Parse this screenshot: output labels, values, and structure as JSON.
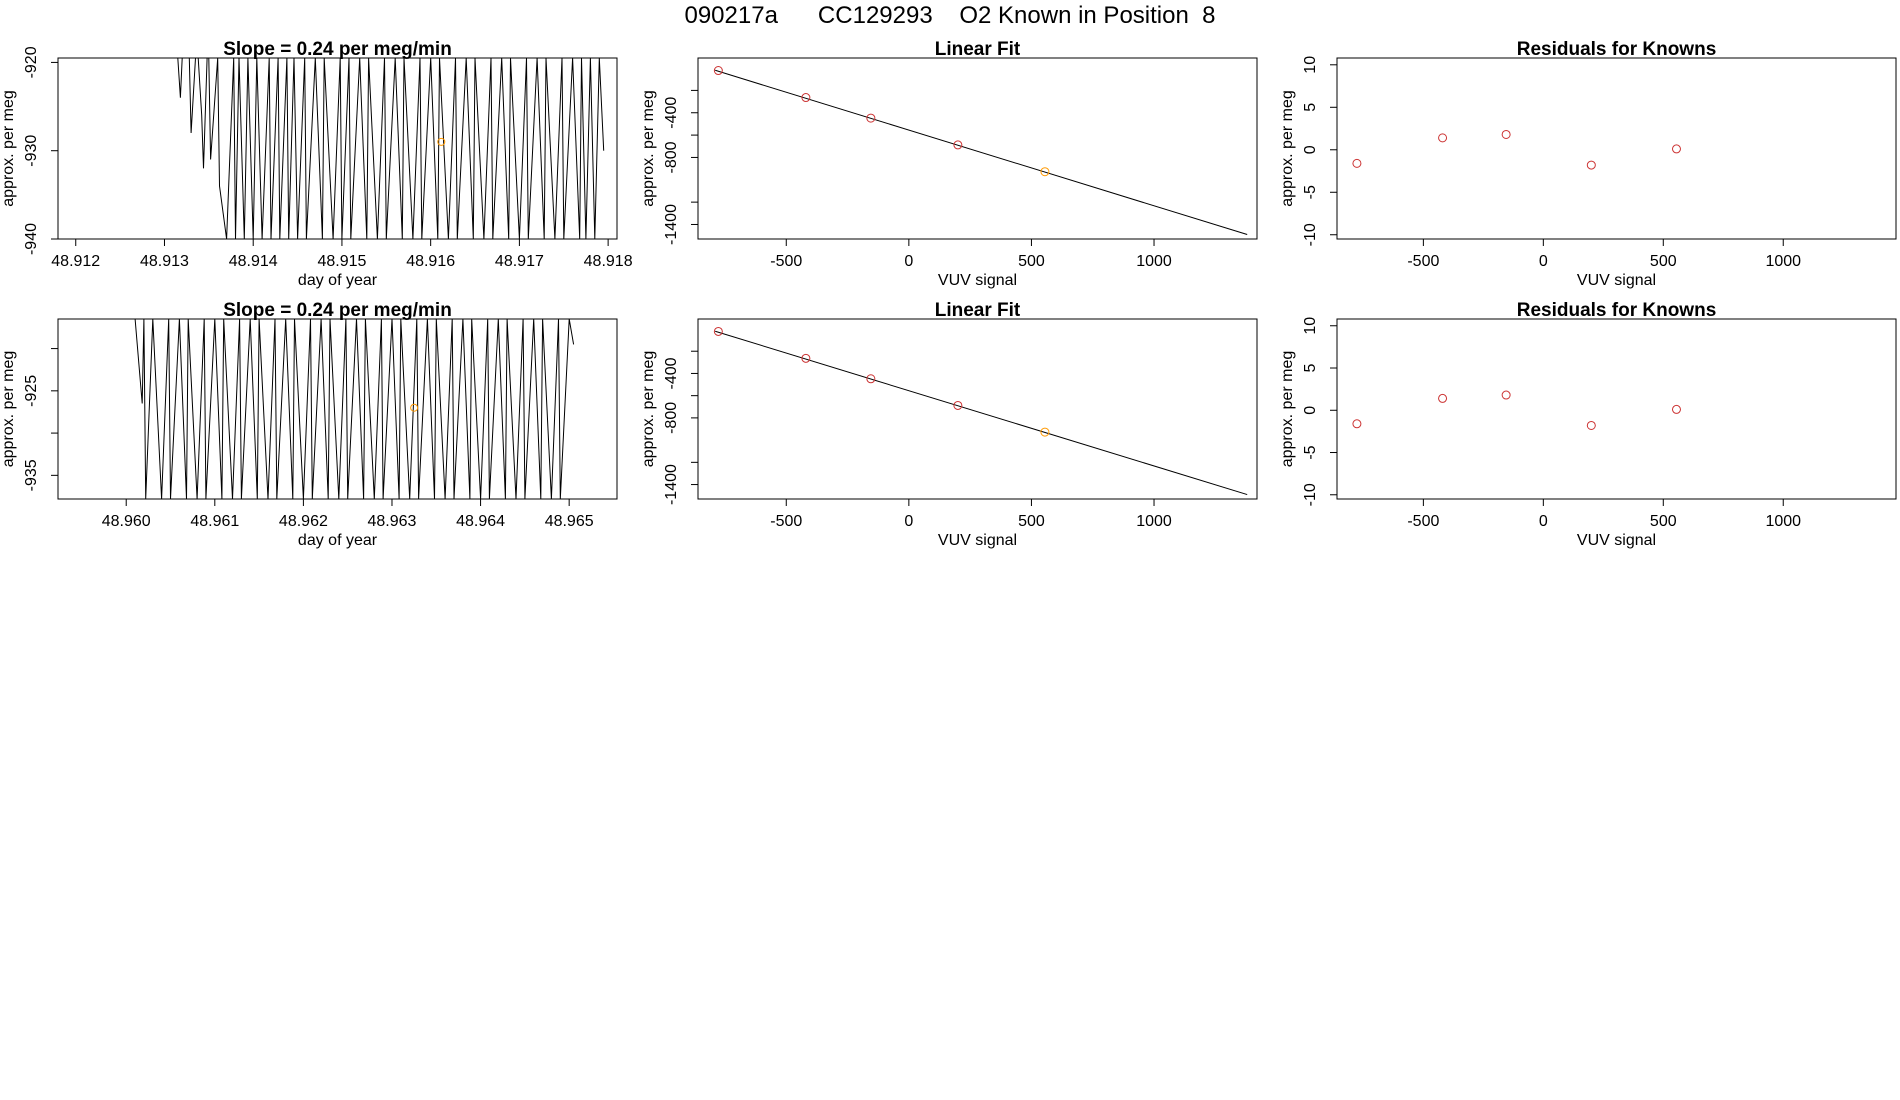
{
  "page_title": "090217a      CC129293    O2 Known in Position  8",
  "colors": {
    "fit_line": "#000000",
    "known_points": "#cc3333",
    "sample_point": "#ff9900",
    "trace": "#000000"
  },
  "chart_data": [
    {
      "id": "drift-top",
      "type": "line",
      "title": "Slope =  0.24  per meg/min",
      "xlabel": "day of year",
      "ylabel": "approx. per meg",
      "xlim": [
        48.9118,
        48.9181
      ],
      "ylim": [
        -940,
        -919.5
      ],
      "xticks": [
        48.912,
        48.913,
        48.914,
        48.915,
        48.916,
        48.917,
        48.918
      ],
      "xtick_labels": [
        "48.912",
        "48.913",
        "48.914",
        "48.915",
        "48.916",
        "48.917",
        "48.918"
      ],
      "yticks": [
        -940,
        -930,
        -920
      ],
      "ytick_labels": [
        "-940",
        "-930",
        "-920"
      ],
      "trace_x": [
        48.91315,
        48.91318,
        48.9132,
        48.91328,
        48.9133,
        48.91335,
        48.91338,
        48.91342,
        48.91344,
        48.91348,
        48.9135,
        48.91352,
        48.9136,
        48.91362,
        48.9137,
        48.91378,
        48.9138,
        48.91384,
        48.9139,
        48.91394,
        48.914,
        48.91404,
        48.9141,
        48.91418,
        48.9142,
        48.91428,
        48.9143,
        48.91438,
        48.9144,
        48.91446,
        48.9145,
        48.91458,
        48.9146,
        48.9147,
        48.91478,
        48.9148,
        48.9149,
        48.91498,
        48.915,
        48.91508,
        48.9151,
        48.9152,
        48.91528,
        48.9153,
        48.9154,
        48.91548,
        48.9155,
        48.9156,
        48.91568,
        48.9157,
        48.9158,
        48.91588,
        48.9159,
        48.916,
        48.91608,
        48.9161,
        48.9162,
        48.91628,
        48.9163,
        48.9164,
        48.91648,
        48.9165,
        48.9166,
        48.91668,
        48.9167,
        48.9168,
        48.91688,
        48.9169,
        48.917,
        48.91708,
        48.9171,
        48.9172,
        48.91728,
        48.9173,
        48.9174,
        48.91748,
        48.9175,
        48.9176,
        48.91768,
        48.9177,
        48.91775,
        48.9178,
        48.91785,
        48.9179,
        48.91795
      ],
      "trace_y": [
        -919.5,
        -924.0,
        -919.5,
        -919.5,
        -928.0,
        -919.5,
        -919.5,
        -926.0,
        -932.0,
        -919.5,
        -919.5,
        -931.0,
        -919.5,
        -934.0,
        -940.0,
        -919.5,
        -940.0,
        -919.5,
        -940.0,
        -919.5,
        -940.0,
        -919.5,
        -940.0,
        -919.5,
        -940.0,
        -919.5,
        -940.0,
        -919.5,
        -940.0,
        -919.5,
        -940.0,
        -919.5,
        -940.0,
        -919.5,
        -940.0,
        -919.5,
        -940.0,
        -919.5,
        -940.0,
        -919.5,
        -940.0,
        -919.5,
        -940.0,
        -919.5,
        -940.0,
        -919.5,
        -940.0,
        -919.5,
        -940.0,
        -919.5,
        -940.0,
        -919.5,
        -940.0,
        -919.5,
        -940.0,
        -919.5,
        -940.0,
        -919.5,
        -940.0,
        -919.5,
        -940.0,
        -919.5,
        -940.0,
        -919.5,
        -940.0,
        -919.5,
        -940.0,
        -919.5,
        -940.0,
        -919.5,
        -940.0,
        -919.5,
        -940.0,
        -919.5,
        -940.0,
        -919.5,
        -940.0,
        -919.5,
        -940.0,
        -919.5,
        -940.0,
        -919.5,
        -940.0,
        -919.5,
        -930.0
      ],
      "point": {
        "x": 48.91612,
        "y": -929.0
      }
    },
    {
      "id": "fit-top",
      "type": "scatter",
      "title": "Linear Fit",
      "xlabel": "VUV signal",
      "ylabel": "approx. per meg",
      "xlim": [
        -860,
        1420
      ],
      "ylim": [
        -1530,
        90
      ],
      "xticks": [
        -500,
        0,
        500,
        1000
      ],
      "xtick_labels": [
        "-500",
        "0",
        "500",
        "1000"
      ],
      "yticks": [
        -1400,
        -800,
        -400
      ],
      "ytick_labels": [
        "-1400",
        "-800",
        "-400"
      ],
      "yticks_minor": [
        -1200,
        -600,
        -200
      ],
      "fit_line": [
        [
          -790,
          -20
        ],
        [
          1380,
          -1490
        ]
      ],
      "points": [
        [
          -777,
          -22
        ],
        [
          -420,
          -264
        ],
        [
          -155,
          -448
        ],
        [
          200,
          -688
        ],
        [
          555,
          -928
        ]
      ],
      "point_colors": [
        "known",
        "known",
        "known",
        "known",
        "sample"
      ]
    },
    {
      "id": "resid-top",
      "type": "scatter",
      "title": "Residuals for Knowns",
      "xlabel": "VUV signal",
      "ylabel": "approx. per meg",
      "xlim": [
        -860,
        1470
      ],
      "ylim": [
        -10.5,
        10.8
      ],
      "xticks": [
        -500,
        0,
        500,
        1000
      ],
      "xtick_labels": [
        "-500",
        "0",
        "500",
        "1000"
      ],
      "yticks": [
        -10,
        -5,
        0,
        5,
        10
      ],
      "ytick_labels": [
        "-10",
        "-5",
        "0",
        "5",
        "10"
      ],
      "points": [
        [
          -777,
          -1.6
        ],
        [
          -420,
          1.4
        ],
        [
          -155,
          1.8
        ],
        [
          200,
          -1.8
        ],
        [
          555,
          0.1
        ]
      ],
      "point_colors": [
        "known",
        "known",
        "known",
        "known",
        "known"
      ]
    },
    {
      "id": "drift-bottom",
      "type": "line",
      "title": "Slope =  0.24  per meg/min",
      "xlabel": "day of year",
      "ylabel": "approx. per meg",
      "xlim": [
        48.95923,
        48.96554
      ],
      "ylim": [
        -937.8,
        -916.5
      ],
      "xticks": [
        48.96,
        48.961,
        48.962,
        48.963,
        48.964,
        48.965
      ],
      "xtick_labels": [
        "48.960",
        "48.961",
        "48.962",
        "48.963",
        "48.964",
        "48.965"
      ],
      "yticks": [
        -935,
        -925
      ],
      "ytick_labels": [
        "-935",
        "-925"
      ],
      "yticks_minor": [
        -930,
        -920
      ],
      "trace_x": [
        48.9601,
        48.96018,
        48.9602,
        48.96022,
        48.9603,
        48.9604,
        48.96048,
        48.9605,
        48.9606,
        48.96068,
        48.9607,
        48.9608,
        48.96088,
        48.9609,
        48.961,
        48.96108,
        48.9611,
        48.9612,
        48.96128,
        48.9613,
        48.9614,
        48.96148,
        48.9615,
        48.9616,
        48.96168,
        48.9617,
        48.9618,
        48.96188,
        48.9619,
        48.962,
        48.96208,
        48.9621,
        48.9622,
        48.96228,
        48.9623,
        48.9624,
        48.96248,
        48.9625,
        48.9626,
        48.96268,
        48.9627,
        48.9628,
        48.96288,
        48.9629,
        48.963,
        48.96308,
        48.9631,
        48.9632,
        48.96328,
        48.9633,
        48.9634,
        48.96348,
        48.9635,
        48.9636,
        48.96368,
        48.9637,
        48.9638,
        48.96388,
        48.9639,
        48.964,
        48.96408,
        48.9641,
        48.9642,
        48.96428,
        48.9643,
        48.9644,
        48.96448,
        48.9645,
        48.9646,
        48.96468,
        48.9647,
        48.9648,
        48.96488,
        48.9649,
        48.965,
        48.96505
      ],
      "trace_y": [
        -916.5,
        -926.5,
        -916.5,
        -937.8,
        -916.5,
        -937.8,
        -916.5,
        -937.8,
        -916.5,
        -937.8,
        -916.5,
        -937.8,
        -916.5,
        -937.8,
        -916.5,
        -937.8,
        -916.5,
        -937.8,
        -916.5,
        -937.8,
        -916.5,
        -937.8,
        -916.5,
        -937.8,
        -916.5,
        -937.8,
        -916.5,
        -937.8,
        -916.5,
        -937.8,
        -916.5,
        -937.8,
        -916.5,
        -937.8,
        -916.5,
        -937.8,
        -916.5,
        -937.8,
        -916.5,
        -937.8,
        -916.5,
        -937.8,
        -916.5,
        -937.8,
        -916.5,
        -937.8,
        -916.5,
        -937.8,
        -916.5,
        -937.8,
        -916.5,
        -937.8,
        -916.5,
        -937.8,
        -916.5,
        -937.8,
        -916.5,
        -937.8,
        -916.5,
        -937.8,
        -916.5,
        -937.8,
        -916.5,
        -937.8,
        -916.5,
        -937.8,
        -916.5,
        -937.8,
        -916.5,
        -937.8,
        -916.5,
        -937.8,
        -916.5,
        -937.8,
        -916.5,
        -919.5
      ],
      "point": {
        "x": 48.96325,
        "y": -927.0
      }
    },
    {
      "id": "fit-bottom",
      "type": "scatter",
      "title": "Linear Fit",
      "xlabel": "VUV signal",
      "ylabel": "approx. per meg",
      "xlim": [
        -860,
        1420
      ],
      "ylim": [
        -1530,
        90
      ],
      "xticks": [
        -500,
        0,
        500,
        1000
      ],
      "xtick_labels": [
        "-500",
        "0",
        "500",
        "1000"
      ],
      "yticks": [
        -1400,
        -800,
        -400
      ],
      "ytick_labels": [
        "-1400",
        "-800",
        "-400"
      ],
      "yticks_minor": [
        -1200,
        -600,
        -200
      ],
      "fit_line": [
        [
          -790,
          -20
        ],
        [
          1380,
          -1490
        ]
      ],
      "points": [
        [
          -777,
          -22
        ],
        [
          -420,
          -264
        ],
        [
          -155,
          -448
        ],
        [
          200,
          -688
        ],
        [
          555,
          -928
        ]
      ],
      "point_colors": [
        "known",
        "known",
        "known",
        "known",
        "sample"
      ]
    },
    {
      "id": "resid-bottom",
      "type": "scatter",
      "title": "Residuals for Knowns",
      "xlabel": "VUV signal",
      "ylabel": "approx. per meg",
      "xlim": [
        -860,
        1470
      ],
      "ylim": [
        -10.5,
        10.8
      ],
      "xticks": [
        -500,
        0,
        500,
        1000
      ],
      "xtick_labels": [
        "-500",
        "0",
        "500",
        "1000"
      ],
      "yticks": [
        -10,
        -5,
        0,
        5,
        10
      ],
      "ytick_labels": [
        "-10",
        "-5",
        "0",
        "5",
        "10"
      ],
      "points": [
        [
          -777,
          -1.6
        ],
        [
          -420,
          1.4
        ],
        [
          -155,
          1.8
        ],
        [
          200,
          -1.8
        ],
        [
          555,
          0.1
        ]
      ],
      "point_colors": [
        "known",
        "known",
        "known",
        "known",
        "known"
      ]
    }
  ]
}
